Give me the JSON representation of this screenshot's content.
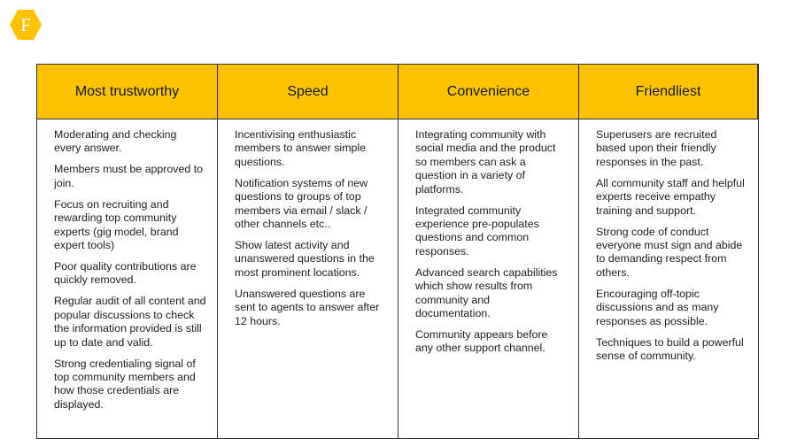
{
  "brand": {
    "logo_letter": "F",
    "color": "#fdc200"
  },
  "columns": [
    {
      "title": "Most trustworthy",
      "items": [
        "Moderating and checking every answer.",
        "Members must be approved to join.",
        "Focus on recruiting and rewarding top community experts (gig model, brand expert tools)",
        "Poor quality contributions are quickly removed.",
        "Regular audit of all content and popular discussions to check the information provided is still up to date and valid.",
        "Strong credentialing signal of top community members and how those credentials are displayed."
      ]
    },
    {
      "title": "Speed",
      "items": [
        "Incentivising enthusiastic members to answer simple questions.",
        "Notification systems of new questions to groups of top members via email / slack / other channels etc..",
        "Show latest activity and unanswered questions in the most prominent locations.",
        "Unanswered questions are sent to agents to answer after 12 hours."
      ]
    },
    {
      "title": "Convenience",
      "items": [
        "Integrating community with social media and the product so members can ask a question in a variety of platforms.",
        "Integrated community experience pre-populates questions and common responses.",
        "Advanced search capabilities which show results from community and documentation.",
        "Community appears before any other support channel."
      ]
    },
    {
      "title": "Friendliest",
      "items": [
        "Superusers are recruited based upon their friendly responses in the past.",
        "All community staff and helpful experts receive empathy training and support.",
        "Strong code of conduct everyone must sign and abide to demanding respect from others.",
        "Encouraging off-topic discussions and as many responses as possible.",
        "Techniques to build a powerful sense of community."
      ]
    }
  ]
}
